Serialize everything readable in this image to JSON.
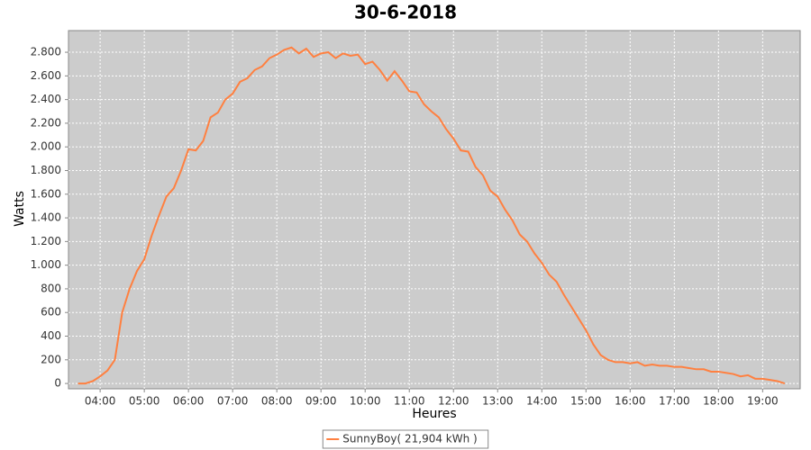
{
  "chart_data": {
    "type": "line",
    "title": "30-6-2018",
    "x_label": "Heures",
    "y_label": "Watts",
    "x": [
      "03:30",
      "03:40",
      "03:50",
      "04:00",
      "04:10",
      "04:20",
      "04:30",
      "04:40",
      "04:50",
      "05:00",
      "05:10",
      "05:20",
      "05:30",
      "05:40",
      "05:50",
      "06:00",
      "06:10",
      "06:20",
      "06:30",
      "06:40",
      "06:50",
      "07:00",
      "07:10",
      "07:20",
      "07:30",
      "07:40",
      "07:50",
      "08:00",
      "08:10",
      "08:20",
      "08:30",
      "08:40",
      "08:50",
      "09:00",
      "09:10",
      "09:20",
      "09:30",
      "09:40",
      "09:50",
      "10:00",
      "10:10",
      "10:20",
      "10:30",
      "10:40",
      "10:50",
      "11:00",
      "11:10",
      "11:20",
      "11:30",
      "11:40",
      "11:50",
      "12:00",
      "12:10",
      "12:20",
      "12:30",
      "12:40",
      "12:50",
      "13:00",
      "13:10",
      "13:20",
      "13:30",
      "13:40",
      "13:50",
      "14:00",
      "14:10",
      "14:20",
      "14:30",
      "14:40",
      "14:50",
      "15:00",
      "15:10",
      "15:20",
      "15:30",
      "15:40",
      "15:50",
      "16:00",
      "16:10",
      "16:20",
      "16:30",
      "16:40",
      "16:50",
      "17:00",
      "17:10",
      "17:20",
      "17:30",
      "17:40",
      "17:50",
      "18:00",
      "18:10",
      "18:20",
      "18:30",
      "18:40",
      "18:50",
      "19:00",
      "19:10",
      "19:20",
      "19:30"
    ],
    "series": [
      {
        "name": "SunnyBoy( 21,904 kWh )",
        "color": "#ff8040",
        "values": [
          0,
          0,
          20,
          60,
          110,
          200,
          600,
          800,
          950,
          1050,
          1250,
          1420,
          1580,
          1650,
          1800,
          1980,
          1970,
          2050,
          2250,
          2290,
          2400,
          2450,
          2550,
          2580,
          2650,
          2680,
          2750,
          2780,
          2820,
          2840,
          2790,
          2830,
          2760,
          2790,
          2800,
          2750,
          2790,
          2770,
          2780,
          2700,
          2720,
          2650,
          2560,
          2640,
          2560,
          2470,
          2460,
          2360,
          2300,
          2250,
          2150,
          2070,
          1970,
          1960,
          1830,
          1760,
          1630,
          1580,
          1470,
          1380,
          1260,
          1200,
          1100,
          1020,
          920,
          860,
          750,
          650,
          550,
          450,
          330,
          240,
          200,
          180,
          180,
          170,
          180,
          150,
          160,
          150,
          150,
          140,
          140,
          130,
          120,
          120,
          100,
          100,
          90,
          80,
          60,
          70,
          40,
          40,
          30,
          20,
          0
        ]
      }
    ],
    "xlim": [
      "03:17",
      "19:51"
    ],
    "xticks": [
      "04:00",
      "05:00",
      "06:00",
      "07:00",
      "08:00",
      "09:00",
      "10:00",
      "11:00",
      "12:00",
      "13:00",
      "14:00",
      "15:00",
      "16:00",
      "17:00",
      "18:00",
      "19:00"
    ],
    "ylim": [
      -45,
      2983
    ],
    "yticks": [
      0,
      200,
      400,
      600,
      800,
      {
        "value": 1000,
        "label": "1.000"
      },
      {
        "value": 1200,
        "label": "1.200"
      },
      {
        "value": 1400,
        "label": "1.400"
      },
      {
        "value": 1600,
        "label": "1.600"
      },
      {
        "value": 1800,
        "label": "1.800"
      },
      {
        "value": 2000,
        "label": "2.000"
      },
      {
        "value": 2200,
        "label": "2.200"
      },
      {
        "value": 2400,
        "label": "2.400"
      },
      {
        "value": 2600,
        "label": "2.600"
      },
      {
        "value": 2800,
        "label": "2.800"
      }
    ],
    "grid": true,
    "legend": "bottom"
  }
}
